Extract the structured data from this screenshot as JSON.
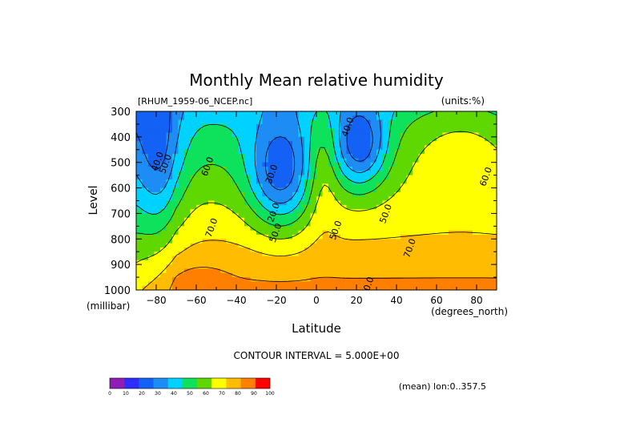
{
  "chart_data": {
    "type": "heatmap",
    "subtype": "filled-contour",
    "title": "Monthly Mean relative humidity",
    "dataset_label": "[RHUM_1959-06_NCEP.nc]",
    "units_label": "(units:%)",
    "xlabel": "Latitude",
    "x_units": "(degrees_north)",
    "ylabel": "Level",
    "y_units": "(millibar)",
    "xlim": [
      -90,
      90
    ],
    "ylim": [
      1000,
      300
    ],
    "x_ticks": [
      -80,
      -60,
      -40,
      -20,
      0,
      20,
      40,
      60,
      80
    ],
    "y_ticks": [
      300,
      400,
      500,
      600,
      700,
      800,
      900,
      1000
    ],
    "contour_interval_text": "CONTOUR INTERVAL = 5.000E+00",
    "mean_note": "(mean) lon:0..357.5",
    "grid": false,
    "contour_labels": [
      {
        "text": "40.0",
        "lat": -78,
        "level": 500
      },
      {
        "text": "50.0",
        "lat": -74,
        "level": 510
      },
      {
        "text": "60.0",
        "lat": -53,
        "level": 520
      },
      {
        "text": "70.0",
        "lat": -51,
        "level": 760
      },
      {
        "text": "30.0",
        "lat": -21,
        "level": 550
      },
      {
        "text": "20.0",
        "lat": -20,
        "level": 700
      },
      {
        "text": "50.0",
        "lat": -19,
        "level": 780
      },
      {
        "text": "40.0",
        "lat": 17,
        "level": 365
      },
      {
        "text": "50.0",
        "lat": 11,
        "level": 770
      },
      {
        "text": "50.0",
        "lat": 36,
        "level": 705
      },
      {
        "text": "70.0",
        "lat": 48,
        "level": 840
      },
      {
        "text": "80.0",
        "lat": 27,
        "level": 990
      },
      {
        "text": "60.0",
        "lat": 86,
        "level": 560
      }
    ],
    "colorbar": {
      "ticks": [
        "0",
        "10",
        "20",
        "30",
        "40",
        "50",
        "60",
        "70",
        "80",
        "90",
        "100"
      ],
      "colors": [
        "#8f1fb4",
        "#2d2dff",
        "#1461f5",
        "#1e8cf5",
        "#00d2ff",
        "#0ee25c",
        "#5fd700",
        "#ffff00",
        "#ffbc00",
        "#ff7f00",
        "#ff0000"
      ]
    }
  }
}
